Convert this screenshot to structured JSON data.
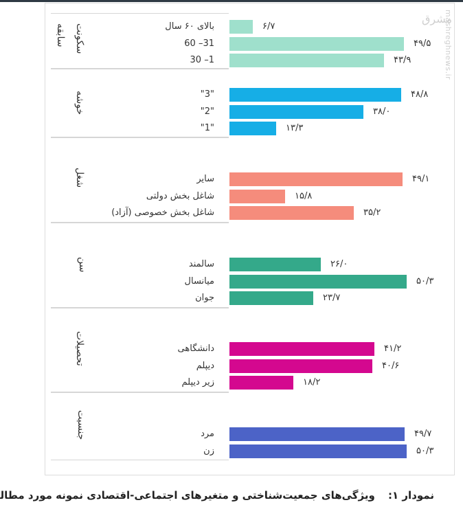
{
  "caption": {
    "figure_label": "نمودار ۱:",
    "title": "ویژگی‌های جمعیت‌شناختی و متغیرهای اجتماعی-اقتصادی نمونه مورد مطالعه"
  },
  "watermark": {
    "logo": "مشرق",
    "url": "mashreghnews.ir"
  },
  "colors": {
    "silence_history": "#9fe0cc",
    "cluster": "#16aee6",
    "job": "#f58c7c",
    "age": "#34a98a",
    "education": "#d4088f",
    "gender": "#4c63c7"
  },
  "groups": [
    {
      "title": "سابقه سکونت",
      "title_lines": [
        "سابقه",
        "سکونت"
      ],
      "color": "#9fe0cc",
      "items": [
        {
          "label": "بالای ۶۰ سال",
          "value": 6.7,
          "value_label": "۶/۷"
        },
        {
          "label": "31– 60",
          "value": 49.5,
          "value_label": "۴۹/۵"
        },
        {
          "label": "1– 30",
          "value": 43.9,
          "value_label": "۴۳/۹"
        }
      ]
    },
    {
      "title": "خوشه",
      "color": "#16aee6",
      "items": [
        {
          "label": "\"3\"",
          "value": 48.8,
          "value_label": "۴۸/۸"
        },
        {
          "label": "\"2\"",
          "value": 38.0,
          "value_label": "۳۸/۰"
        },
        {
          "label": "\"1\"",
          "value": 13.3,
          "value_label": "۱۳/۳"
        }
      ]
    },
    {
      "title": "شغل",
      "color": "#f58c7c",
      "items": [
        {
          "label": "سایر",
          "value": 49.1,
          "value_label": "۴۹/۱"
        },
        {
          "label": "شاغل بخش دولتی",
          "value": 15.8,
          "value_label": "۱۵/۸"
        },
        {
          "label": "شاغل بخش خصوصی (آزاد)",
          "value": 35.2,
          "value_label": "۳۵/۲"
        }
      ]
    },
    {
      "title": "سن",
      "color": "#34a98a",
      "items": [
        {
          "label": "سالمند",
          "value": 26.0,
          "value_label": "۲۶/۰"
        },
        {
          "label": "میانسال",
          "value": 50.3,
          "value_label": "۵۰/۳"
        },
        {
          "label": "جوان",
          "value": 23.7,
          "value_label": "۲۳/۷"
        }
      ]
    },
    {
      "title": "تحصیلات",
      "color": "#d4088f",
      "items": [
        {
          "label": "دانشگاهی",
          "value": 41.2,
          "value_label": "۴۱/۲"
        },
        {
          "label": "دیپلم",
          "value": 40.6,
          "value_label": "۴۰/۶"
        },
        {
          "label": "زیر دیپلم",
          "value": 18.2,
          "value_label": "۱۸/۲"
        }
      ]
    },
    {
      "title": "جنسیت",
      "color": "#4c63c7",
      "items": [
        {
          "label": "مرد",
          "value": 49.7,
          "value_label": "۴۹/۷"
        },
        {
          "label": "زن",
          "value": 50.3,
          "value_label": "۵۰/۳"
        }
      ]
    }
  ],
  "chart_data": {
    "type": "bar",
    "orientation": "horizontal",
    "title": "ویژگی‌های جمعیت‌شناختی و متغیرهای اجتماعی-اقتصادی نمونه مورد مطالعه",
    "figure_label": "نمودار ۱",
    "xlabel": "",
    "ylabel": "",
    "units": "percent",
    "grid": false,
    "legend": null,
    "xlim": [
      0,
      55
    ],
    "series": [
      {
        "name": "سابقه سکونت",
        "categories": [
          "بالای ۶۰ سال",
          "31– 60",
          "1– 30"
        ],
        "values": [
          6.7,
          49.5,
          43.9
        ],
        "color": "#9fe0cc"
      },
      {
        "name": "خوشه",
        "categories": [
          "\"3\"",
          "\"2\"",
          "\"1\""
        ],
        "values": [
          48.8,
          38.0,
          13.3
        ],
        "color": "#16aee6"
      },
      {
        "name": "شغل",
        "categories": [
          "سایر",
          "شاغل بخش دولتی",
          "شاغل بخش خصوصی (آزاد)"
        ],
        "values": [
          49.1,
          15.8,
          35.2
        ],
        "color": "#f58c7c"
      },
      {
        "name": "سن",
        "categories": [
          "سالمند",
          "میانسال",
          "جوان"
        ],
        "values": [
          26.0,
          50.3,
          23.7
        ],
        "color": "#34a98a"
      },
      {
        "name": "تحصیلات",
        "categories": [
          "دانشگاهی",
          "دیپلم",
          "زیر دیپلم"
        ],
        "values": [
          41.2,
          40.6,
          18.2
        ],
        "color": "#d4088f"
      },
      {
        "name": "جنسیت",
        "categories": [
          "مرد",
          "زن"
        ],
        "values": [
          49.7,
          50.3
        ],
        "color": "#4c63c7"
      }
    ]
  }
}
